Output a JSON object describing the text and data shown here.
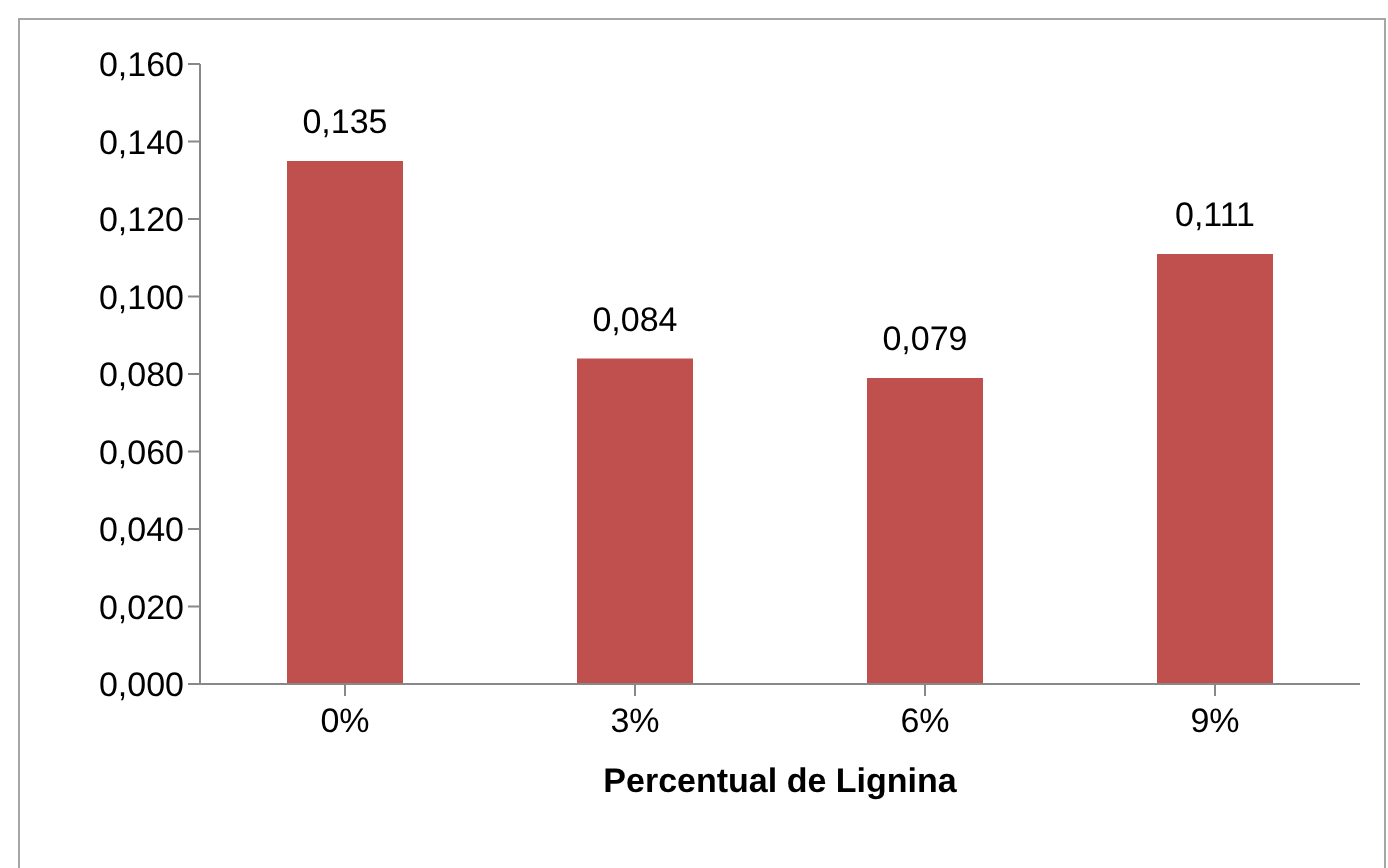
{
  "chart_data": {
    "type": "bar",
    "xlabel": "Percentual de Lignina",
    "categories": [
      "0%",
      "3%",
      "6%",
      "9%"
    ],
    "values": [
      0.135,
      0.084,
      0.079,
      0.111
    ],
    "color": "#c0504d",
    "value_labels": [
      "0,135",
      "0,084",
      "0,079",
      "0,111"
    ],
    "ylim": [
      0,
      0.16
    ],
    "yticks": [
      {
        "value": 0,
        "label": "0,000"
      },
      {
        "value": 0.02,
        "label": "0,020"
      },
      {
        "value": 0.04,
        "label": "0,040"
      },
      {
        "value": 0.06,
        "label": "0,060"
      },
      {
        "value": 0.08,
        "label": "0,080"
      },
      {
        "value": 0.1,
        "label": "0,100"
      },
      {
        "value": 0.12,
        "label": "0,120"
      },
      {
        "value": 0.14,
        "label": "0,140"
      },
      {
        "value": 0.16,
        "label": "0,160"
      }
    ]
  }
}
